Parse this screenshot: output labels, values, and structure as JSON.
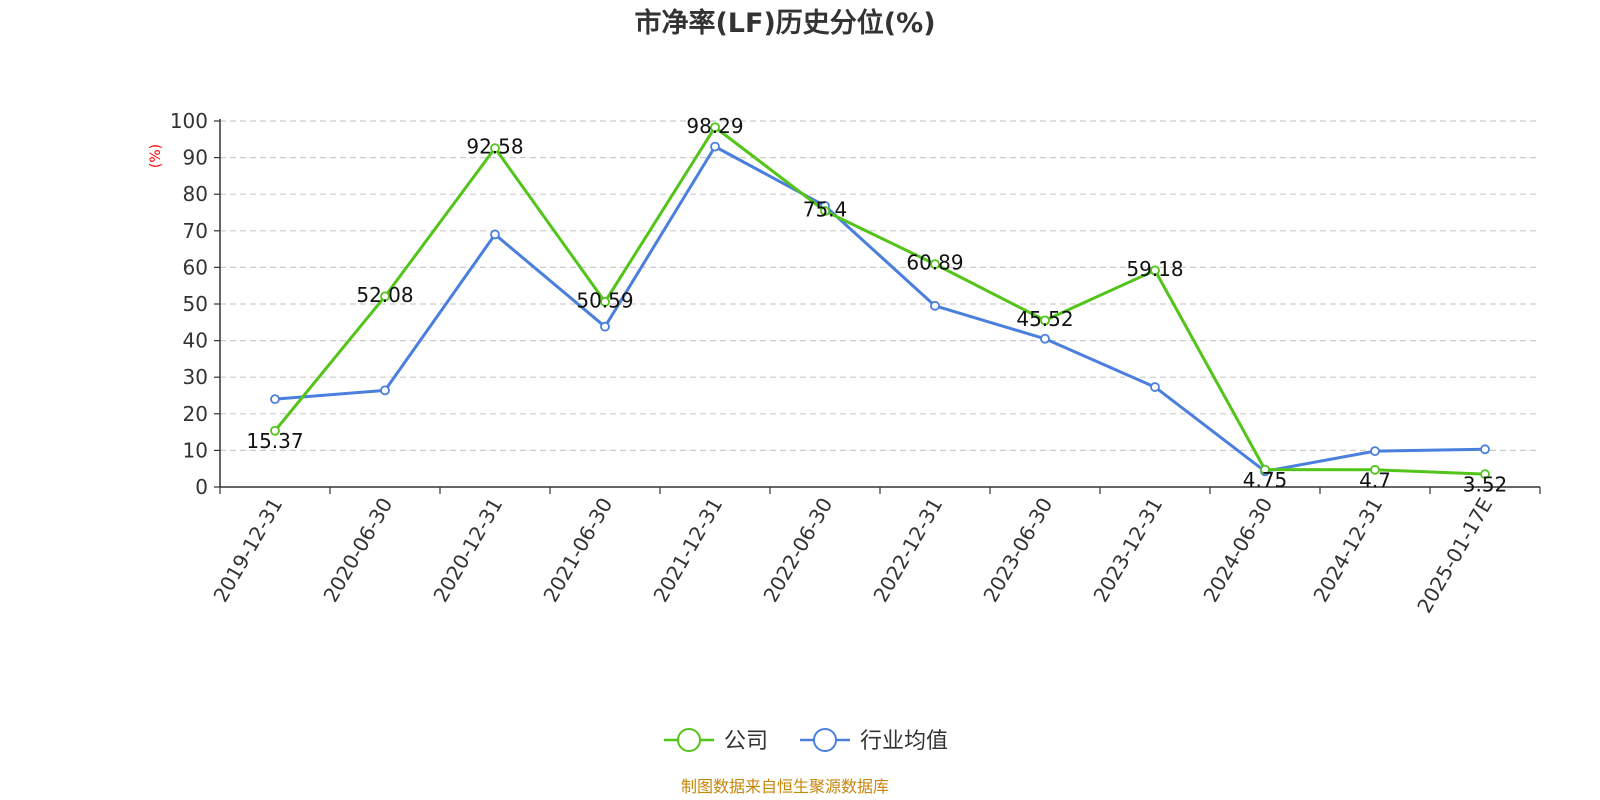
{
  "chart_data": {
    "type": "line",
    "title": "市净率(LF)历史分位(%)",
    "ylabel": "(%)",
    "ylim": [
      0,
      100
    ],
    "yticks": [
      "0",
      "10",
      "20",
      "30",
      "40",
      "50",
      "60",
      "70",
      "80",
      "90",
      "100"
    ],
    "categories": [
      "2019-12-31",
      "2020-06-30",
      "2020-12-31",
      "2021-06-30",
      "2021-12-31",
      "2022-06-30",
      "2022-12-31",
      "2023-06-30",
      "2023-12-31",
      "2024-06-30",
      "2024-12-31",
      "2025-01-17E"
    ],
    "grid": true,
    "legend_position": "bottom",
    "series": [
      {
        "name": "公司",
        "color": "#52c41a",
        "values": [
          15.37,
          52.08,
          92.58,
          50.59,
          98.29,
          75.4,
          60.89,
          45.52,
          59.18,
          4.75,
          4.7,
          3.52
        ],
        "labels": [
          "15.37",
          "52.08",
          "92.58",
          "50.59",
          "98.29",
          "75.4",
          "60.89",
          "45.52",
          "59.18",
          "4.75",
          "4.7",
          "3.52"
        ]
      },
      {
        "name": "行业均值",
        "color": "#4a7fdd",
        "values": [
          24.0,
          26.4,
          69.0,
          43.8,
          93.0,
          76.8,
          49.5,
          40.5,
          27.3,
          4.3,
          9.8,
          10.3
        ]
      }
    ],
    "source": "制图数据来自恒生聚源数据库",
    "colors": {
      "ylabel": "#ff0000",
      "source": "#c8860a",
      "grid": "#cccccc",
      "axis": "#333333"
    }
  }
}
